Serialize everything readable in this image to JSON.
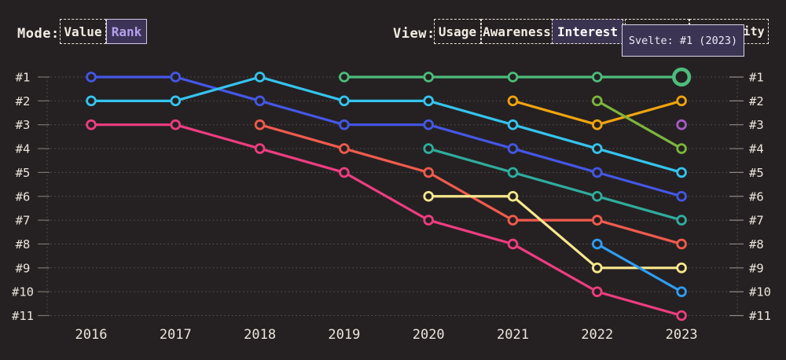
{
  "app": {
    "background": "#252122",
    "text_color": "#f2ece3",
    "grid_color": "#575150"
  },
  "controls": {
    "mode": {
      "label": "Mode:",
      "options": [
        {
          "label": "Value",
          "selected": false
        },
        {
          "label": "Rank",
          "selected": true
        }
      ]
    },
    "view": {
      "label": "View:",
      "options": [
        {
          "label": "Usage",
          "selected": false
        },
        {
          "label": "Awareness",
          "selected": false
        },
        {
          "label": "Interest",
          "selected": true
        },
        {
          "label": "",
          "selected": false,
          "occluded_by_tooltip": true
        },
        {
          "label": "Positivity",
          "selected": false,
          "partially_occluded_visible_part": "ty"
        }
      ]
    }
  },
  "tooltip": {
    "text": "Svelte: #1 (2023)",
    "bg": "#3b3553",
    "border": "#dad4ea"
  },
  "chart_data": {
    "type": "line",
    "variant": "bump_rank",
    "x": [
      "2016",
      "2017",
      "2018",
      "2019",
      "2020",
      "2021",
      "2022",
      "2023"
    ],
    "y_axis_labels": [
      "#1",
      "#2",
      "#3",
      "#4",
      "#5",
      "#6",
      "#7",
      "#8",
      "#9",
      "#10",
      "#11"
    ],
    "y_axis_sides": [
      "left",
      "right"
    ],
    "grid": "dotted-horizontal",
    "series": [
      {
        "name": "blue-series",
        "color": "#4557e6",
        "ranks": {
          "2016": 1,
          "2017": 1,
          "2018": 2,
          "2019": 3,
          "2020": 3,
          "2021": 4,
          "2022": 5,
          "2023": 6
        }
      },
      {
        "name": "cyan-series",
        "color": "#35c4ee",
        "ranks": {
          "2016": 2,
          "2017": 2,
          "2018": 1,
          "2019": 2,
          "2020": 2,
          "2021": 3,
          "2022": 4,
          "2023": 5
        }
      },
      {
        "name": "pink-series",
        "color": "#ee3d80",
        "ranks": {
          "2016": 3,
          "2017": 3,
          "2018": 4,
          "2019": 5,
          "2020": 7,
          "2021": 8,
          "2022": 10,
          "2023": 11
        }
      },
      {
        "name": "salmon-series",
        "color": "#f15b4d",
        "ranks": {
          "2018": 3,
          "2019": 4,
          "2020": 5,
          "2021": 7,
          "2022": 7,
          "2023": 8
        }
      },
      {
        "name": "green-series",
        "color": "#4cbd7c",
        "ranks": {
          "2019": 1,
          "2020": 1,
          "2021": 1,
          "2022": 1,
          "2023": 1
        }
      },
      {
        "name": "teal-series",
        "color": "#2fad9d",
        "ranks": {
          "2020": 4,
          "2021": 5,
          "2022": 6,
          "2023": 7
        }
      },
      {
        "name": "yellow-series",
        "color": "#f8e88d",
        "ranks": {
          "2020": 6,
          "2021": 6,
          "2022": 9,
          "2023": 9
        }
      },
      {
        "name": "orange-series",
        "color": "#f0a40f",
        "ranks": {
          "2021": 2,
          "2022": 3,
          "2023": 2
        }
      },
      {
        "name": "olive-series",
        "color": "#7cb53d",
        "ranks": {
          "2022": 2,
          "2023": 4
        }
      },
      {
        "name": "lightblue-series",
        "color": "#2e9df3",
        "ranks": {
          "2022": 8,
          "2023": 10
        }
      },
      {
        "name": "purple-series",
        "color": "#a55cc5",
        "ranks": {
          "2023": 3
        }
      }
    ],
    "highlight": {
      "series": "green-series",
      "x": "2023",
      "rank": 1,
      "tooltip": "Svelte: #1 (2023)"
    }
  }
}
